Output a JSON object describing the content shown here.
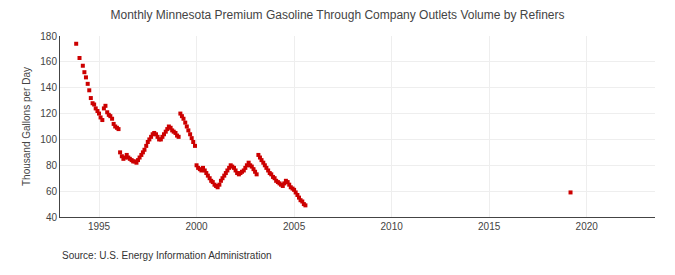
{
  "chart_data": {
    "type": "scatter",
    "title": "Monthly Minnesota Premium Gasoline Through Company Outlets Volume by Refiners",
    "ylabel": "Thousand Gallons per Day",
    "annotations": [
      "Source: U.S. Energy Information Administration"
    ],
    "color": "#cc0000",
    "marker": "square",
    "grid": true,
    "xlim": [
      1993.0,
      2023.5
    ],
    "xticks": [
      1995,
      2000,
      2005,
      2010,
      2015,
      2020
    ],
    "ylim": [
      40,
      180
    ],
    "yticks": [
      40,
      60,
      80,
      100,
      120,
      140,
      160,
      180
    ],
    "x": [
      1993.83,
      1994.0,
      1994.17,
      1994.25,
      1994.33,
      1994.42,
      1994.5,
      1994.58,
      1994.67,
      1994.75,
      1994.83,
      1994.92,
      1995.0,
      1995.08,
      1995.17,
      1995.25,
      1995.33,
      1995.42,
      1995.5,
      1995.58,
      1995.67,
      1995.75,
      1995.83,
      1995.92,
      1996.0,
      1996.08,
      1996.17,
      1996.25,
      1996.33,
      1996.42,
      1996.5,
      1996.58,
      1996.67,
      1996.75,
      1996.83,
      1996.92,
      1997.0,
      1997.08,
      1997.17,
      1997.25,
      1997.33,
      1997.42,
      1997.5,
      1997.58,
      1997.67,
      1997.75,
      1997.83,
      1997.92,
      1998.0,
      1998.08,
      1998.17,
      1998.25,
      1998.33,
      1998.42,
      1998.5,
      1998.58,
      1998.67,
      1998.75,
      1998.83,
      1998.92,
      1999.0,
      1999.08,
      1999.17,
      1999.25,
      1999.33,
      1999.42,
      1999.5,
      1999.58,
      1999.67,
      1999.75,
      1999.83,
      1999.92,
      2000.0,
      2000.08,
      2000.17,
      2000.25,
      2000.33,
      2000.42,
      2000.5,
      2000.58,
      2000.67,
      2000.75,
      2000.83,
      2000.92,
      2001.0,
      2001.08,
      2001.17,
      2001.25,
      2001.33,
      2001.42,
      2001.5,
      2001.58,
      2001.67,
      2001.75,
      2001.83,
      2001.92,
      2002.0,
      2002.08,
      2002.17,
      2002.25,
      2002.33,
      2002.42,
      2002.5,
      2002.58,
      2002.67,
      2002.75,
      2002.83,
      2002.92,
      2003.0,
      2003.08,
      2003.17,
      2003.25,
      2003.33,
      2003.42,
      2003.5,
      2003.58,
      2003.67,
      2003.75,
      2003.83,
      2003.92,
      2004.0,
      2004.08,
      2004.17,
      2004.25,
      2004.33,
      2004.42,
      2004.5,
      2004.58,
      2004.67,
      2004.75,
      2004.83,
      2004.92,
      2005.0,
      2005.08,
      2005.17,
      2005.25,
      2005.33,
      2005.42,
      2005.5,
      2005.58,
      2019.17
    ],
    "values": [
      174,
      163,
      157,
      152,
      148,
      143,
      138,
      132,
      128,
      127,
      124,
      122,
      120,
      117,
      115,
      124,
      126,
      121,
      119,
      118,
      116,
      112,
      110,
      109,
      108,
      90,
      87,
      85,
      86,
      88,
      86,
      85,
      84,
      83,
      83,
      82,
      84,
      86,
      88,
      90,
      92,
      95,
      98,
      100,
      102,
      104,
      105,
      104,
      102,
      100,
      100,
      102,
      104,
      106,
      108,
      110,
      109,
      107,
      106,
      105,
      103,
      102,
      120,
      118,
      116,
      113,
      110,
      107,
      104,
      101,
      98,
      95,
      80,
      78,
      77,
      76,
      78,
      76,
      74,
      72,
      70,
      68,
      67,
      65,
      64,
      63,
      65,
      68,
      70,
      72,
      74,
      76,
      78,
      80,
      79,
      78,
      76,
      74,
      73,
      74,
      75,
      76,
      78,
      80,
      82,
      80,
      79,
      77,
      75,
      73,
      88,
      86,
      84,
      82,
      80,
      78,
      76,
      74,
      73,
      71,
      70,
      68,
      67,
      66,
      65,
      64,
      66,
      68,
      67,
      65,
      63,
      62,
      61,
      59,
      57,
      55,
      53,
      52,
      50,
      49,
      59
    ]
  }
}
